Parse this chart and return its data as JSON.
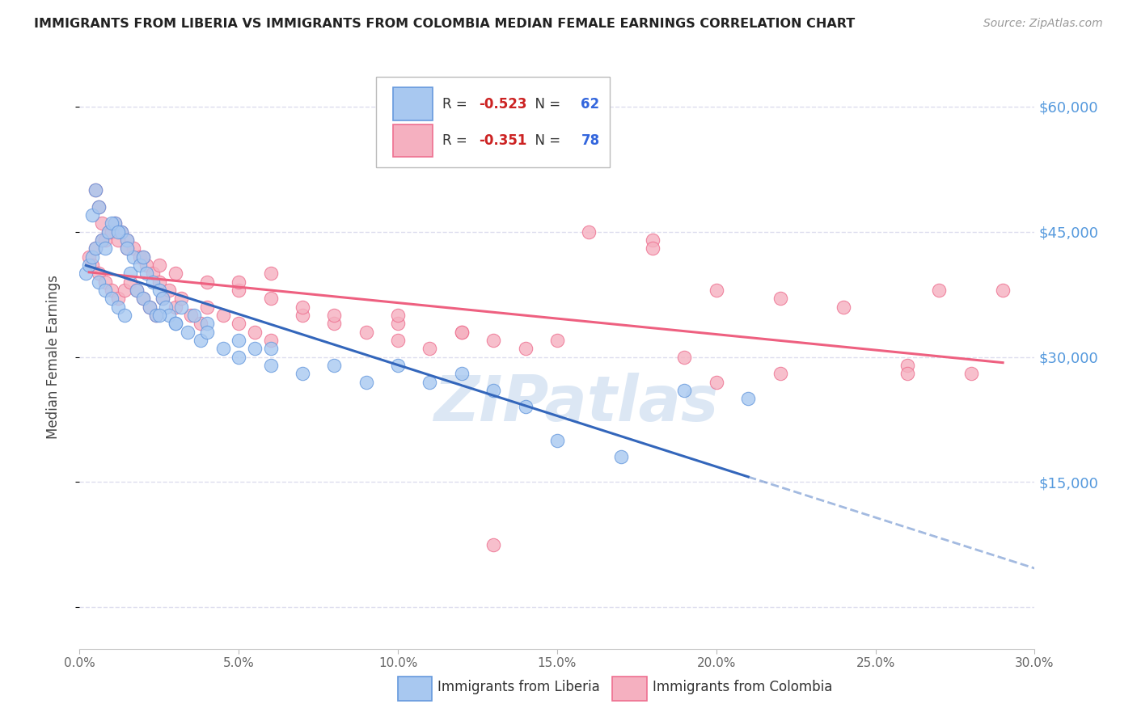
{
  "title": "IMMIGRANTS FROM LIBERIA VS IMMIGRANTS FROM COLOMBIA MEDIAN FEMALE EARNINGS CORRELATION CHART",
  "source": "Source: ZipAtlas.com",
  "ylabel": "Median Female Earnings",
  "xlabel_ticks": [
    "0.0%",
    "5.0%",
    "10.0%",
    "15.0%",
    "20.0%",
    "25.0%",
    "30.0%"
  ],
  "xlabel_vals": [
    0.0,
    5.0,
    10.0,
    15.0,
    20.0,
    25.0,
    30.0
  ],
  "xlim": [
    0.0,
    30.0
  ],
  "ylim": [
    -5000,
    65000
  ],
  "liberia_R": -0.523,
  "liberia_N": 62,
  "colombia_R": -0.351,
  "colombia_N": 78,
  "liberia_color": "#A8C8F0",
  "colombia_color": "#F5B0C0",
  "liberia_edge_color": "#6699DD",
  "colombia_edge_color": "#EE7090",
  "liberia_line_color": "#3366BB",
  "colombia_line_color": "#EE6080",
  "watermark": "ZIPatlas",
  "watermark_color": "#C5D8EE",
  "background_color": "#FFFFFF",
  "grid_color": "#DDDDEE",
  "right_label_color": "#5599DD",
  "liberia_x": [
    0.2,
    0.3,
    0.4,
    0.5,
    0.6,
    0.7,
    0.8,
    0.9,
    1.0,
    1.1,
    1.2,
    1.3,
    1.4,
    1.5,
    1.6,
    1.7,
    1.8,
    1.9,
    2.0,
    2.1,
    2.2,
    2.3,
    2.4,
    2.5,
    2.6,
    2.7,
    2.8,
    3.0,
    3.2,
    3.4,
    3.6,
    3.8,
    4.0,
    4.5,
    5.0,
    5.5,
    6.0,
    7.0,
    8.0,
    9.0,
    10.0,
    11.0,
    12.0,
    13.0,
    14.0,
    15.0,
    17.0,
    19.0,
    21.0,
    0.4,
    0.5,
    0.6,
    0.8,
    1.0,
    1.2,
    1.5,
    2.0,
    2.5,
    3.0,
    4.0,
    5.0,
    6.0
  ],
  "liberia_y": [
    40000,
    41000,
    42000,
    43000,
    39000,
    44000,
    38000,
    45000,
    37000,
    46000,
    36000,
    45000,
    35000,
    44000,
    40000,
    42000,
    38000,
    41000,
    37000,
    40000,
    36000,
    39000,
    35000,
    38000,
    37000,
    36000,
    35000,
    34000,
    36000,
    33000,
    35000,
    32000,
    34000,
    31000,
    30000,
    31000,
    29000,
    28000,
    29000,
    27000,
    29000,
    27000,
    28000,
    26000,
    24000,
    20000,
    18000,
    26000,
    25000,
    47000,
    50000,
    48000,
    43000,
    46000,
    45000,
    43000,
    42000,
    35000,
    34000,
    33000,
    32000,
    31000
  ],
  "colombia_x": [
    0.3,
    0.4,
    0.5,
    0.6,
    0.7,
    0.8,
    0.9,
    1.0,
    1.1,
    1.2,
    1.3,
    1.4,
    1.5,
    1.6,
    1.7,
    1.8,
    1.9,
    2.0,
    2.1,
    2.2,
    2.3,
    2.4,
    2.5,
    2.6,
    2.8,
    3.0,
    3.2,
    3.5,
    3.8,
    4.0,
    4.5,
    5.0,
    5.5,
    6.0,
    7.0,
    8.0,
    9.0,
    10.0,
    11.0,
    12.0,
    13.0,
    14.0,
    16.0,
    18.0,
    20.0,
    22.0,
    24.0,
    26.0,
    28.0,
    0.5,
    0.6,
    0.7,
    0.8,
    1.0,
    1.2,
    1.5,
    2.0,
    2.5,
    3.0,
    4.0,
    5.0,
    6.0,
    7.0,
    8.0,
    10.0,
    12.0,
    15.0,
    19.0,
    22.0,
    27.0,
    6.0,
    10.0,
    18.0,
    26.0,
    20.0,
    29.0,
    5.0,
    13.0
  ],
  "colombia_y": [
    42000,
    41000,
    43000,
    40000,
    44000,
    39000,
    45000,
    38000,
    46000,
    37000,
    45000,
    38000,
    44000,
    39000,
    43000,
    38000,
    42000,
    37000,
    41000,
    36000,
    40000,
    35000,
    39000,
    37000,
    38000,
    36000,
    37000,
    35000,
    34000,
    36000,
    35000,
    34000,
    33000,
    32000,
    35000,
    34000,
    33000,
    32000,
    31000,
    33000,
    32000,
    31000,
    45000,
    44000,
    38000,
    37000,
    36000,
    29000,
    28000,
    50000,
    48000,
    46000,
    44000,
    45000,
    44000,
    43000,
    42000,
    41000,
    40000,
    39000,
    38000,
    37000,
    36000,
    35000,
    34000,
    33000,
    32000,
    30000,
    28000,
    38000,
    40000,
    35000,
    43000,
    28000,
    27000,
    38000,
    39000,
    7500
  ]
}
